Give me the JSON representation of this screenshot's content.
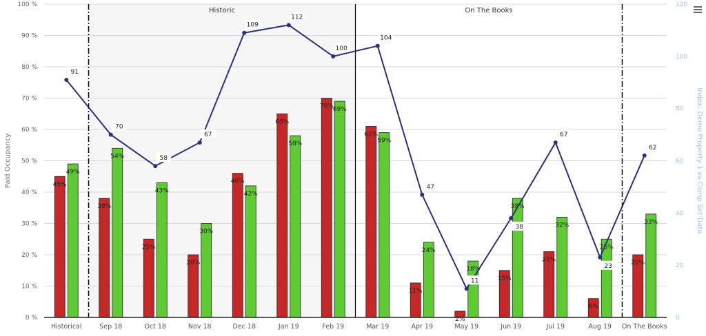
{
  "chart_data": {
    "type": "bar",
    "categories": [
      "Historical",
      "Sep 18",
      "Oct 18",
      "Nov 18",
      "Dec 18",
      "Jan 19",
      "Feb 19",
      "Mar 19",
      "Apr 19",
      "May 19",
      "Jun 19",
      "Jul 19",
      "Aug 19",
      "On The Books"
    ],
    "series": [
      {
        "type": "bar",
        "axis": "left",
        "color": "#c62828",
        "values": [
          45,
          38,
          25,
          20,
          46,
          65,
          70,
          61,
          11,
          2,
          15,
          21,
          6,
          20
        ]
      },
      {
        "type": "bar",
        "axis": "left",
        "color": "#5ecb32",
        "values": [
          49,
          54,
          43,
          30,
          42,
          58,
          69,
          59,
          24,
          18,
          38,
          32,
          25,
          33
        ]
      },
      {
        "type": "line",
        "axis": "right",
        "color": "#2b2f7f",
        "values": [
          91,
          70,
          58,
          67,
          109,
          112,
          100,
          104,
          47,
          11,
          38,
          67,
          23,
          62
        ]
      }
    ],
    "ylabel": "Paid Occupancy",
    "y_ticks": [
      "0 %",
      "10 %",
      "20 %",
      "30 %",
      "40 %",
      "50 %",
      "60 %",
      "70 %",
      "80 %",
      "90 %",
      "100 %"
    ],
    "ylim": [
      0,
      100
    ],
    "y2label": "Index: Demo Property 1 vs Comp Set Data",
    "y2_ticks": [
      "0",
      "20",
      "40",
      "60",
      "80",
      "100",
      "120"
    ],
    "y2lim": [
      0,
      120
    ],
    "bands": [
      {
        "label": "Historic",
        "from": "Sep 18",
        "to": "Feb 19",
        "shaded": true
      },
      {
        "label": "On The Books",
        "from": "Mar 19",
        "to": "Aug 19",
        "shaded": false
      }
    ],
    "grid": true,
    "legend": "none"
  },
  "menu_icon": "hamburger-menu-icon"
}
